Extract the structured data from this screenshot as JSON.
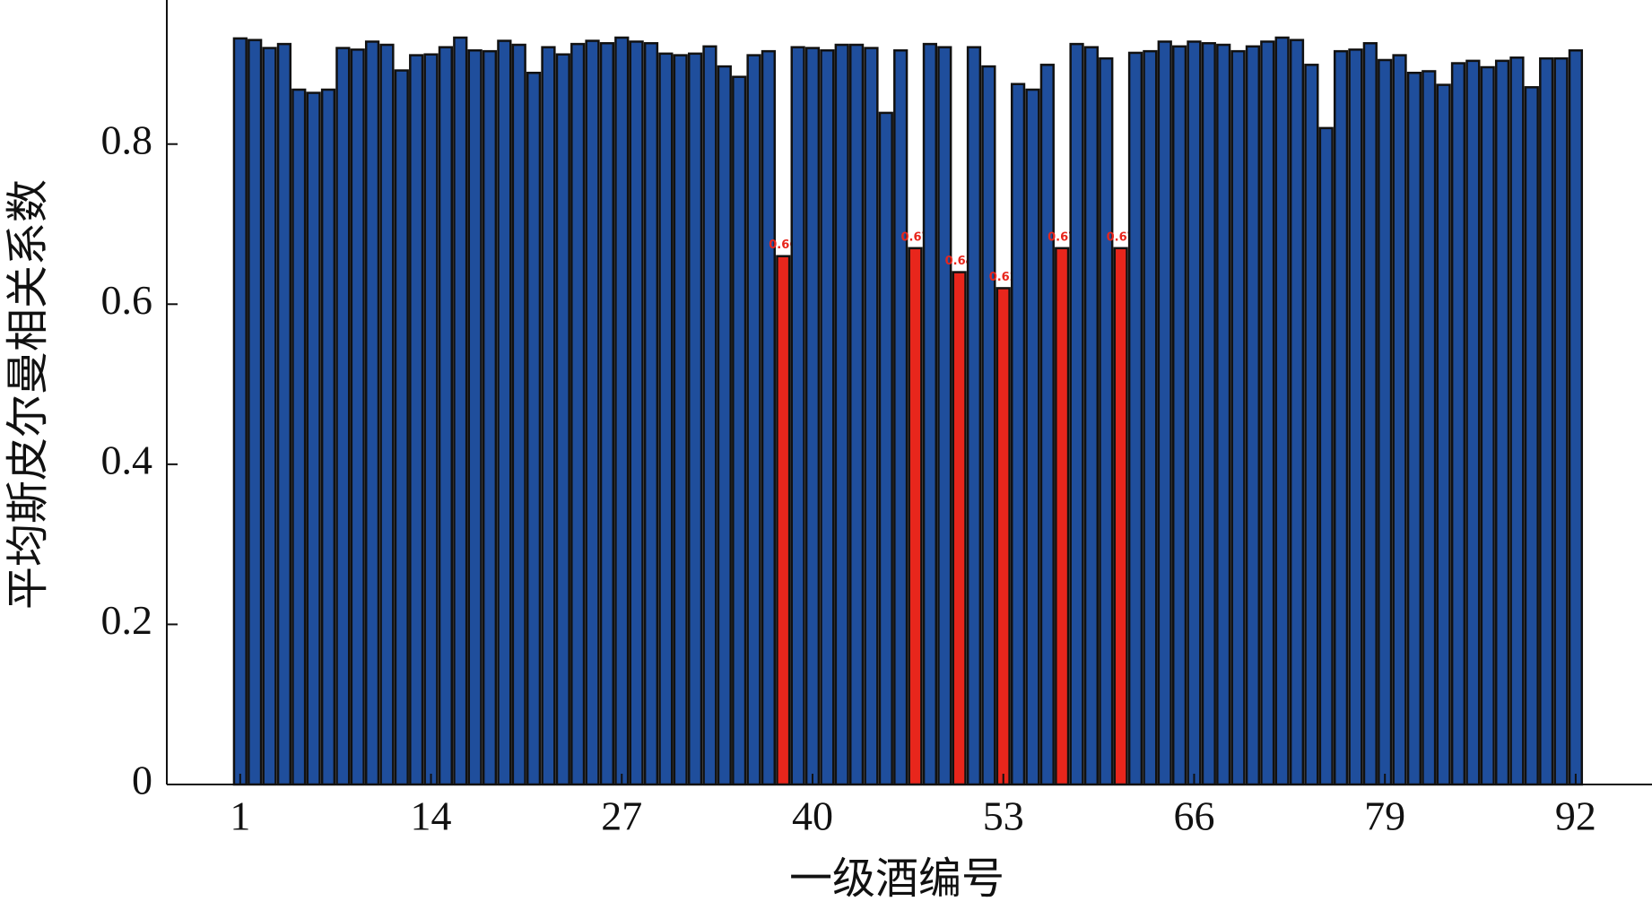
{
  "chart_data": {
    "type": "bar",
    "x_label": "一级酒编号",
    "y_label": "平均斯皮尔曼相关系数",
    "x": [
      1,
      2,
      3,
      4,
      5,
      6,
      7,
      8,
      9,
      10,
      11,
      12,
      13,
      14,
      15,
      16,
      17,
      18,
      19,
      20,
      21,
      22,
      23,
      24,
      25,
      26,
      27,
      28,
      29,
      30,
      31,
      32,
      33,
      34,
      35,
      36,
      37,
      38,
      39,
      40,
      41,
      42,
      43,
      44,
      45,
      46,
      47,
      48,
      49,
      50,
      51,
      52,
      53,
      54,
      55,
      56,
      57,
      58,
      59,
      60,
      61,
      62,
      63,
      64,
      65,
      66,
      67,
      68,
      69,
      70,
      71,
      72,
      73,
      74,
      75,
      76,
      77,
      78,
      79,
      80,
      81,
      82,
      83,
      84,
      85,
      86,
      87,
      88,
      89,
      90,
      91,
      92
    ],
    "values": [
      0.932,
      0.93,
      0.92,
      0.925,
      0.868,
      0.864,
      0.868,
      0.92,
      0.918,
      0.928,
      0.924,
      0.892,
      0.911,
      0.912,
      0.921,
      0.933,
      0.917,
      0.916,
      0.929,
      0.924,
      0.889,
      0.921,
      0.912,
      0.925,
      0.929,
      0.926,
      0.933,
      0.928,
      0.926,
      0.913,
      0.911,
      0.913,
      0.922,
      0.897,
      0.884,
      0.911,
      0.916,
      0.66,
      0.921,
      0.92,
      0.917,
      0.924,
      0.924,
      0.92,
      0.839,
      0.917,
      0.67,
      0.925,
      0.921,
      0.64,
      0.921,
      0.897,
      0.62,
      0.875,
      0.868,
      0.899,
      0.67,
      0.925,
      0.921,
      0.907,
      0.67,
      0.914,
      0.916,
      0.928,
      0.922,
      0.928,
      0.926,
      0.924,
      0.916,
      0.922,
      0.928,
      0.933,
      0.93,
      0.899,
      0.82,
      0.916,
      0.918,
      0.926,
      0.905,
      0.911,
      0.889,
      0.891,
      0.874,
      0.901,
      0.904,
      0.896,
      0.904,
      0.908,
      0.871,
      0.907,
      0.907,
      0.917
    ],
    "value_labels": [
      null,
      null,
      null,
      null,
      null,
      null,
      null,
      null,
      null,
      null,
      null,
      null,
      null,
      null,
      null,
      null,
      null,
      null,
      null,
      null,
      null,
      null,
      null,
      null,
      null,
      null,
      null,
      null,
      null,
      null,
      null,
      null,
      null,
      null,
      null,
      null,
      null,
      "0.66",
      null,
      null,
      null,
      null,
      null,
      null,
      null,
      null,
      "0.67",
      null,
      null,
      "0.64",
      null,
      null,
      "0.62",
      null,
      null,
      null,
      "0.67",
      null,
      null,
      null,
      "0.67",
      null,
      null,
      null,
      null,
      null,
      null,
      null,
      null,
      null,
      null,
      null,
      null,
      null,
      null,
      null,
      null,
      null,
      null,
      null,
      null,
      null,
      null,
      null,
      null,
      null,
      null,
      null,
      null,
      null,
      null,
      null
    ],
    "color": "#1f4e9c",
    "highlight_color": "#e8261c",
    "label_color": "#e8261c",
    "xlim": [
      -4,
      97.2
    ],
    "xticks": [
      1,
      14,
      27,
      40,
      53,
      66,
      79,
      92
    ],
    "ylim": [
      0,
      0.98
    ],
    "yticks": [
      0,
      0.2,
      0.4,
      0.6,
      0.8
    ]
  }
}
